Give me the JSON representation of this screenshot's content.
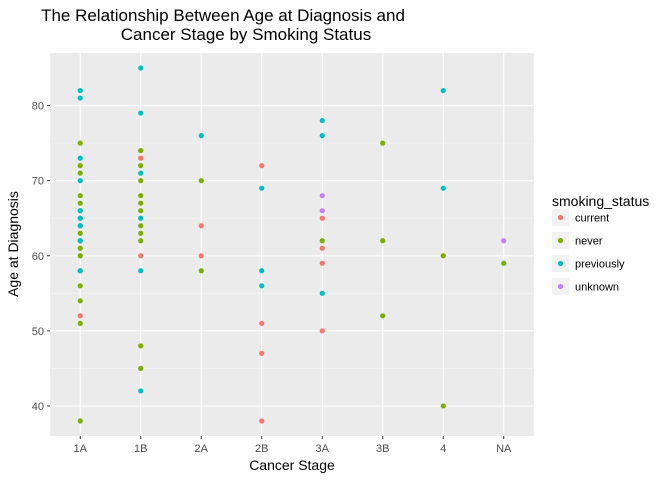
{
  "chart_data": {
    "type": "scatter",
    "title_lines": [
      "The Relationship Between Age at Diagnosis and",
      "Cancer Stage by Smoking Status"
    ],
    "xlabel": "Cancer Stage",
    "ylabel": "Age at Diagnosis",
    "categories": [
      "1A",
      "1B",
      "2A",
      "2B",
      "3A",
      "3B",
      "4",
      "NA"
    ],
    "yticks": [
      40,
      50,
      60,
      70,
      80
    ],
    "ylim": [
      36,
      87
    ],
    "grid": true,
    "legend": {
      "title": "smoking_status",
      "position": "right"
    },
    "series": [
      {
        "name": "current",
        "color": "#F8766D",
        "points": [
          [
            "1A",
            52
          ],
          [
            "1A",
            58
          ],
          [
            "1A",
            64
          ],
          [
            "1B",
            73
          ],
          [
            "1B",
            60
          ],
          [
            "2A",
            64
          ],
          [
            "2A",
            60
          ],
          [
            "2B",
            72
          ],
          [
            "2B",
            51
          ],
          [
            "2B",
            47
          ],
          [
            "2B",
            38
          ],
          [
            "3A",
            65
          ],
          [
            "3A",
            61
          ],
          [
            "3A",
            59
          ],
          [
            "3A",
            50
          ]
        ]
      },
      {
        "name": "never",
        "color": "#7CAE00",
        "points": [
          [
            "1A",
            75
          ],
          [
            "1A",
            72
          ],
          [
            "1A",
            71
          ],
          [
            "1A",
            68
          ],
          [
            "1A",
            67
          ],
          [
            "1A",
            66
          ],
          [
            "1A",
            65
          ],
          [
            "1A",
            64
          ],
          [
            "1A",
            63
          ],
          [
            "1A",
            62
          ],
          [
            "1A",
            61
          ],
          [
            "1A",
            60
          ],
          [
            "1A",
            56
          ],
          [
            "1A",
            54
          ],
          [
            "1A",
            51
          ],
          [
            "1A",
            38
          ],
          [
            "1B",
            74
          ],
          [
            "1B",
            72
          ],
          [
            "1B",
            70
          ],
          [
            "1B",
            68
          ],
          [
            "1B",
            67
          ],
          [
            "1B",
            66
          ],
          [
            "1B",
            65
          ],
          [
            "1B",
            64
          ],
          [
            "1B",
            63
          ],
          [
            "1B",
            62
          ],
          [
            "1B",
            48
          ],
          [
            "1B",
            45
          ],
          [
            "2A",
            70
          ],
          [
            "2A",
            58
          ],
          [
            "3A",
            62
          ],
          [
            "3B",
            75
          ],
          [
            "3B",
            62
          ],
          [
            "3B",
            52
          ],
          [
            "4",
            60
          ],
          [
            "4",
            40
          ],
          [
            "NA",
            59
          ]
        ]
      },
      {
        "name": "previously",
        "color": "#00BFC4",
        "points": [
          [
            "1A",
            82
          ],
          [
            "1A",
            81
          ],
          [
            "1A",
            73
          ],
          [
            "1A",
            70
          ],
          [
            "1A",
            66
          ],
          [
            "1A",
            65
          ],
          [
            "1A",
            64
          ],
          [
            "1A",
            62
          ],
          [
            "1A",
            58
          ],
          [
            "1B",
            85
          ],
          [
            "1B",
            79
          ],
          [
            "1B",
            71
          ],
          [
            "1B",
            65
          ],
          [
            "1B",
            58
          ],
          [
            "1B",
            42
          ],
          [
            "2A",
            76
          ],
          [
            "2B",
            69
          ],
          [
            "2B",
            58
          ],
          [
            "2B",
            56
          ],
          [
            "3A",
            78
          ],
          [
            "3A",
            76
          ],
          [
            "3A",
            55
          ],
          [
            "4",
            82
          ],
          [
            "4",
            69
          ]
        ]
      },
      {
        "name": "unknown",
        "color": "#C77CFF",
        "points": [
          [
            "3A",
            68
          ],
          [
            "3A",
            66
          ],
          [
            "NA",
            62
          ]
        ]
      }
    ]
  }
}
